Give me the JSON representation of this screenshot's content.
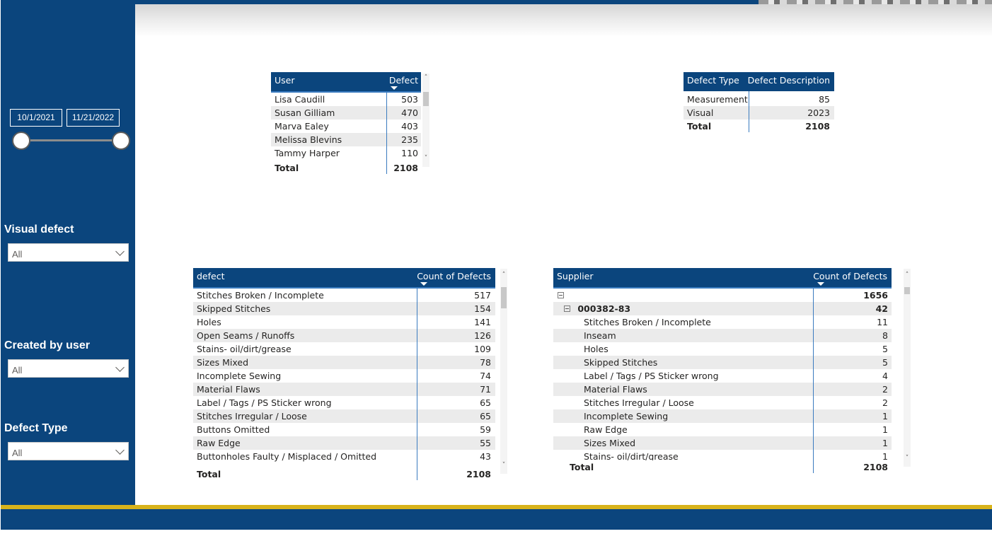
{
  "date_range": {
    "start": "10/1/2021",
    "end": "11/21/2022",
    "start_fraction": 0.0,
    "end_fraction": 1.0
  },
  "slicers": [
    {
      "label": "Visual defect",
      "value": "All"
    },
    {
      "label": "Created by user",
      "value": "All"
    },
    {
      "label": "Defect Type",
      "value": "All"
    }
  ],
  "user_table": {
    "col1": "User",
    "col2": "Defect",
    "rows": [
      {
        "name": "Lisa Caudill",
        "value": "503"
      },
      {
        "name": "Susan Gilliam",
        "value": "470"
      },
      {
        "name": "Marva Ealey",
        "value": "403"
      },
      {
        "name": "Melissa Blevins",
        "value": "235"
      },
      {
        "name": "Tammy Harper",
        "value": "110"
      }
    ],
    "total_label": "Total",
    "total_value": "2108"
  },
  "type_table": {
    "col1": "Defect Type",
    "col2": "Defect Description",
    "rows": [
      {
        "name": "Measurement",
        "value": "85"
      },
      {
        "name": "Visual",
        "value": "2023"
      }
    ],
    "total_label": "Total",
    "total_value": "2108"
  },
  "defect_table": {
    "col1": "defect",
    "col2": "Count of Defects",
    "rows": [
      {
        "name": "Stitches Broken / Incomplete",
        "value": "517"
      },
      {
        "name": "Skipped Stitches",
        "value": "154"
      },
      {
        "name": "Holes",
        "value": "141"
      },
      {
        "name": "Open Seams / Runoffs",
        "value": "126"
      },
      {
        "name": "Stains- oil/dirt/grease",
        "value": "109"
      },
      {
        "name": "Sizes Mixed",
        "value": "78"
      },
      {
        "name": "Incomplete Sewing",
        "value": "74"
      },
      {
        "name": "Material Flaws",
        "value": "71"
      },
      {
        "name": "Label / Tags / PS Sticker wrong",
        "value": "65"
      },
      {
        "name": "Stitches Irregular / Loose",
        "value": "65"
      },
      {
        "name": "Buttons Omitted",
        "value": "59"
      },
      {
        "name": "Raw Edge",
        "value": "55"
      },
      {
        "name": "Buttonholes Faulty / Misplaced / Omitted",
        "value": "43"
      }
    ],
    "total_label": "Total",
    "total_value": "2108"
  },
  "supplier_table": {
    "col1": "Supplier",
    "col2": "Count of Defects",
    "root_value": "1656",
    "group": {
      "name": "000382-83",
      "value": "42"
    },
    "rows": [
      {
        "name": "Stitches Broken / Incomplete",
        "value": "11"
      },
      {
        "name": "Inseam",
        "value": "8"
      },
      {
        "name": "Holes",
        "value": "5"
      },
      {
        "name": "Skipped Stitches",
        "value": "5"
      },
      {
        "name": "Label / Tags / PS Sticker wrong",
        "value": "4"
      },
      {
        "name": "Material Flaws",
        "value": "2"
      },
      {
        "name": "Stitches Irregular / Loose",
        "value": "2"
      },
      {
        "name": "Incomplete Sewing",
        "value": "1"
      },
      {
        "name": "Raw Edge",
        "value": "1"
      },
      {
        "name": "Sizes Mixed",
        "value": "1"
      },
      {
        "name": "Stains- oil/dirt/grease",
        "value": "1"
      }
    ],
    "total_label": "Total",
    "total_value": "2108"
  },
  "colors": {
    "brand_blue": "#0b457d",
    "accent_yellow": "#d8b31b",
    "row_alt": "#ebebeb"
  }
}
